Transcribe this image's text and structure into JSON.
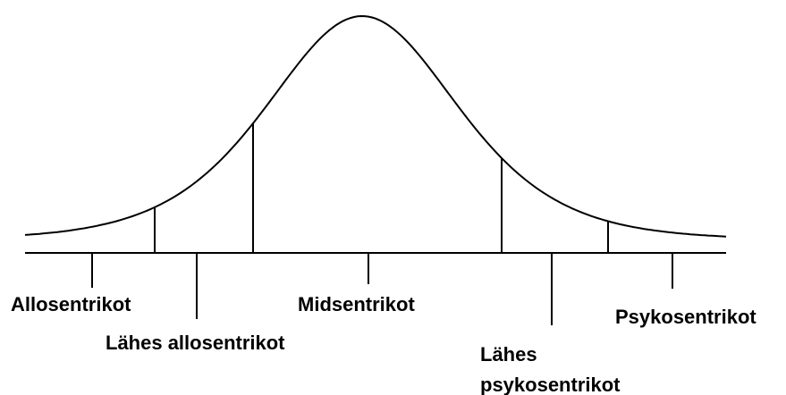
{
  "labels": {
    "allosentrikot": "Allosentrikot",
    "lahes_allosentrikot": "Lähes allosentrikot",
    "midsentrikot": "Midsentrikot",
    "lahes_psykosentrikot": [
      "Lähes",
      "psykosentrikot"
    ],
    "psykosentrikot": "Psykosentrikot"
  }
}
